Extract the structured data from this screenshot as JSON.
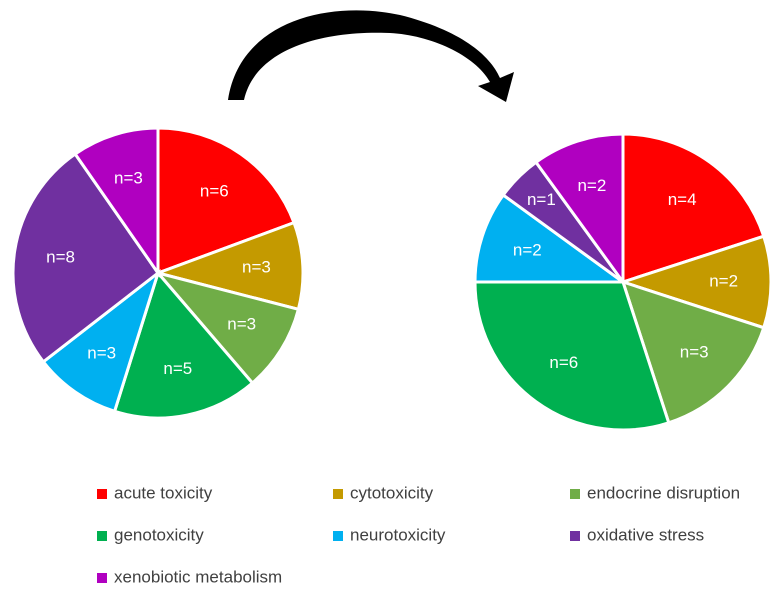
{
  "legend": {
    "labels": [
      "acute toxicity",
      "cytotoxicity",
      "endocrine disruption",
      "genotoxicity",
      "neurotoxicity",
      "oxidative stress",
      "xenobiotic metabolism"
    ],
    "colors": [
      "#ff0000",
      "#c49a00",
      "#70ad47",
      "#00b050",
      "#00b0f0",
      "#7030a0",
      "#b000c0"
    ]
  },
  "chart_data": [
    {
      "type": "pie",
      "values": [
        6,
        3,
        3,
        5,
        3,
        8,
        3
      ],
      "value_labels": [
        "n=6",
        "n=3",
        "n=3",
        "n=5",
        "n=3",
        "n=8",
        "n=3"
      ]
    },
    {
      "type": "pie",
      "values": [
        4,
        2,
        3,
        6,
        2,
        1,
        2
      ],
      "value_labels": [
        "n=4",
        "n=2",
        "n=3",
        "n=6",
        "n=2",
        "n=1",
        "n=2"
      ]
    }
  ]
}
